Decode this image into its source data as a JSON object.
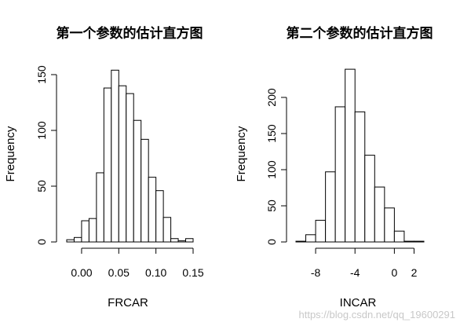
{
  "watermark": "https://blog.csdn.net/qq_19600291",
  "chart_data": [
    {
      "type": "bar",
      "title": "第一个参数的估计直方图",
      "xlabel": "FRCAR",
      "ylabel": "Frequency",
      "xticks": [
        "0.00",
        "0.05",
        "0.10",
        "0.15"
      ],
      "xtick_values": [
        0.0,
        0.05,
        0.1,
        0.15
      ],
      "yticks": [
        "0",
        "50",
        "100",
        "150"
      ],
      "ytick_values": [
        0,
        50,
        100,
        150
      ],
      "ylim": [
        0,
        155
      ],
      "bin_edges": [
        -0.02,
        -0.01,
        0.0,
        0.01,
        0.02,
        0.03,
        0.04,
        0.05,
        0.06,
        0.07,
        0.08,
        0.09,
        0.1,
        0.11,
        0.12,
        0.13,
        0.14,
        0.15
      ],
      "values": [
        2,
        4,
        19,
        21,
        62,
        138,
        154,
        140,
        133,
        109,
        92,
        58,
        46,
        22,
        3,
        1,
        3
      ]
    },
    {
      "type": "bar",
      "title": "第二个参数的估计直方图",
      "xlabel": "INCAR",
      "ylabel": "Frequency",
      "xticks": [
        "-8",
        "-4",
        "0",
        "2"
      ],
      "xtick_values": [
        -8,
        -4,
        0,
        2
      ],
      "yticks": [
        "0",
        "50",
        "100",
        "150",
        "200"
      ],
      "ytick_values": [
        0,
        50,
        100,
        150,
        200
      ],
      "ylim": [
        0,
        240
      ],
      "bin_edges": [
        -10,
        -9,
        -8,
        -7,
        -6,
        -5,
        -4,
        -3,
        -2,
        -1,
        0,
        1,
        2,
        3
      ],
      "values": [
        1,
        10,
        30,
        97,
        187,
        239,
        180,
        120,
        76,
        47,
        15,
        1,
        1
      ]
    }
  ]
}
